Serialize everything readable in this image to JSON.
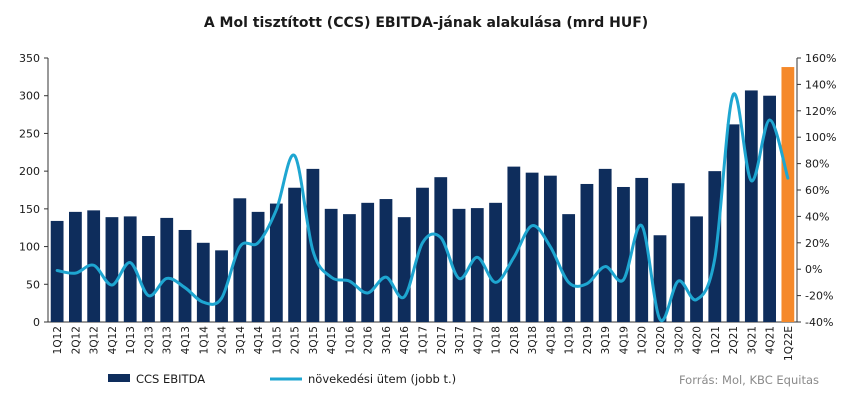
{
  "chart_data": {
    "type": "bar",
    "title": "A Mol tisztított (CCS) EBITDA-jának alakulása (mrd HUF)",
    "categories": [
      "1Q12",
      "2Q12",
      "3Q12",
      "4Q12",
      "1Q13",
      "2Q13",
      "3Q13",
      "4Q13",
      "1Q14",
      "2Q14",
      "3Q14",
      "4Q14",
      "1Q15",
      "2Q15",
      "3Q15",
      "4Q15",
      "1Q16",
      "2Q16",
      "3Q16",
      "4Q16",
      "1Q17",
      "2Q17",
      "3Q17",
      "4Q17",
      "1Q18",
      "2Q18",
      "3Q18",
      "4Q18",
      "1Q19",
      "2Q19",
      "3Q19",
      "4Q19",
      "1Q20",
      "2Q20",
      "3Q20",
      "4Q20",
      "1Q21",
      "2Q21",
      "3Q21",
      "4Q21",
      "1Q22E"
    ],
    "series": [
      {
        "name": "CCS EBITDA",
        "axis": "left",
        "values": [
          134,
          146,
          148,
          139,
          140,
          114,
          138,
          122,
          105,
          95,
          164,
          146,
          157,
          178,
          203,
          150,
          143,
          158,
          163,
          139,
          178,
          192,
          150,
          151,
          158,
          206,
          198,
          194,
          143,
          183,
          203,
          179,
          191,
          115,
          184,
          140,
          200,
          262,
          307,
          300,
          338
        ],
        "color": "#0e2d5c",
        "highlight_color": "#f5892a",
        "highlight_index": 40
      },
      {
        "name": "növekedési ütem (jobb t.)",
        "axis": "right",
        "values": [
          -1,
          -3,
          3,
          -12,
          5,
          -20,
          -7,
          -14,
          -25,
          -22,
          17,
          20,
          45,
          86,
          14,
          -6,
          -9,
          -18,
          -6,
          -21,
          20,
          24,
          -7,
          9,
          -10,
          9,
          33,
          17,
          -10,
          -11,
          2,
          -8,
          33,
          -38,
          -9,
          -23,
          8,
          132,
          67,
          113,
          69
        ],
        "color": "#1ea6d1"
      }
    ],
    "y_left": {
      "min": 0,
      "max": 350,
      "ticks": [
        0,
        50,
        100,
        150,
        200,
        250,
        300,
        350
      ]
    },
    "y_right": {
      "min": -40,
      "max": 160,
      "ticks": [
        "-40%",
        "-20%",
        "0%",
        "20%",
        "40%",
        "60%",
        "80%",
        "100%",
        "120%",
        "140%",
        "160%"
      ]
    },
    "grid": false,
    "legend_position": "bottom-left",
    "source": "Forrás: Mol, KBC Equitas"
  }
}
